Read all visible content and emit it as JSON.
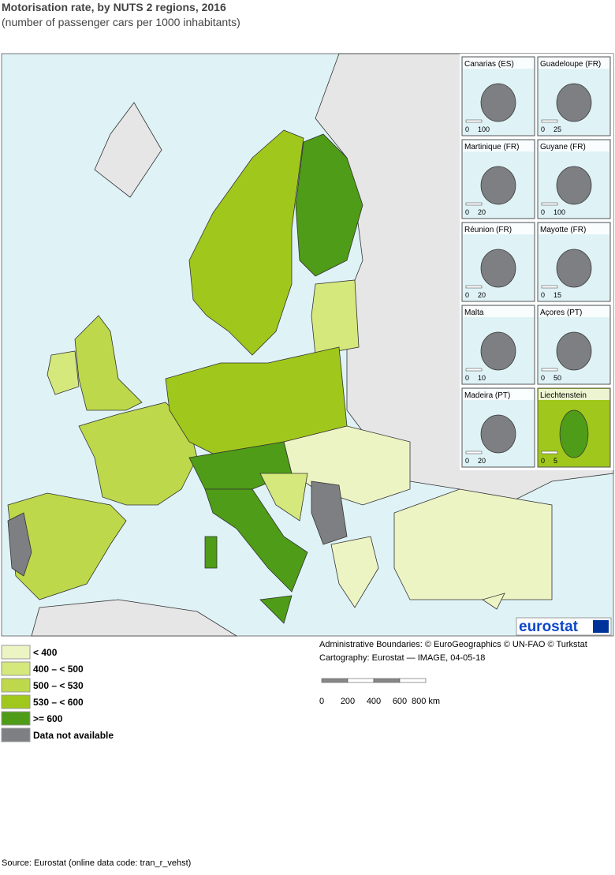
{
  "header": {
    "title": "Motorisation rate, by NUTS 2 regions, 2016",
    "subtitle": "(number of passenger cars per 1000 inhabitants)"
  },
  "insets": [
    {
      "name": "Canarias (ES)",
      "scale": [
        "0",
        "100"
      ]
    },
    {
      "name": "Guadeloupe (FR)",
      "scale": [
        "0",
        "25"
      ]
    },
    {
      "name": "Martinique (FR)",
      "scale": [
        "0",
        "20"
      ]
    },
    {
      "name": "Guyane (FR)",
      "scale": [
        "0",
        "100"
      ]
    },
    {
      "name": "Réunion (FR)",
      "scale": [
        "0",
        "20"
      ]
    },
    {
      "name": "Mayotte (FR)",
      "scale": [
        "0",
        "15"
      ]
    },
    {
      "name": "Malta",
      "scale": [
        "0",
        "10"
      ]
    },
    {
      "name": "Açores (PT)",
      "scale": [
        "0",
        "50"
      ]
    },
    {
      "name": "Madeira (PT)",
      "scale": [
        "0",
        "20"
      ]
    },
    {
      "name": "Liechtenstein",
      "scale": [
        "0",
        "5"
      ]
    }
  ],
  "legend": [
    {
      "label": "< 400",
      "color": "#edf4c4"
    },
    {
      "label": "400 – < 500",
      "color": "#d5e87c"
    },
    {
      "label": "500 – < 530",
      "color": "#bdd94b"
    },
    {
      "label": "530 – < 600",
      "color": "#a0c81c"
    },
    {
      "label": ">= 600",
      "color": "#4e9c17"
    },
    {
      "label": "Data not available",
      "color": "#7d7f82"
    }
  ],
  "logo": "eurostat",
  "credits": [
    "Administrative Boundaries: © EuroGeographics © UN-FAO © Turkstat",
    "Cartography: Eurostat — IMAGE, 04-05-18"
  ],
  "scale_bar": [
    "0",
    "200",
    "400",
    "600",
    "800 km"
  ],
  "source": "Source: Eurostat (online data code: tran_r_vehst)"
}
